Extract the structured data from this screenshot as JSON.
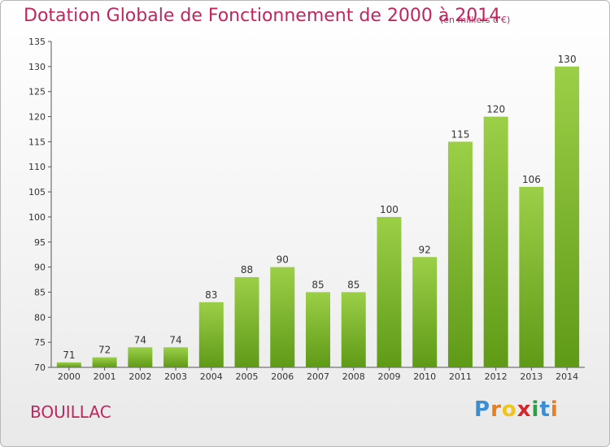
{
  "chart_data": {
    "type": "bar",
    "title": "Dotation Globale de Fonctionnement de 2000 à 2014",
    "subtitle": "(en milliers d'€)",
    "categories": [
      "2000",
      "2001",
      "2002",
      "2003",
      "2004",
      "2005",
      "2006",
      "2007",
      "2008",
      "2009",
      "2010",
      "2011",
      "2012",
      "2013",
      "2014"
    ],
    "values": [
      71,
      72,
      74,
      74,
      83,
      88,
      90,
      85,
      85,
      100,
      92,
      115,
      120,
      106,
      130
    ],
    "ylim": [
      70,
      135
    ],
    "yticks": [
      70,
      75,
      80,
      85,
      90,
      95,
      100,
      105,
      110,
      115,
      120,
      125,
      130,
      135
    ],
    "bar_color": "#7cbb27",
    "label_color": "#333333",
    "grid": false
  },
  "commune": "BOUILLAC",
  "logo": {
    "letters": [
      "P",
      "r",
      "o",
      "x",
      "i",
      "t",
      "i"
    ],
    "colors": [
      "#3b8fd1",
      "#e67e22",
      "#f0c419",
      "#d7262b",
      "#2e9e48",
      "#3b8fd1",
      "#e67e22"
    ]
  }
}
